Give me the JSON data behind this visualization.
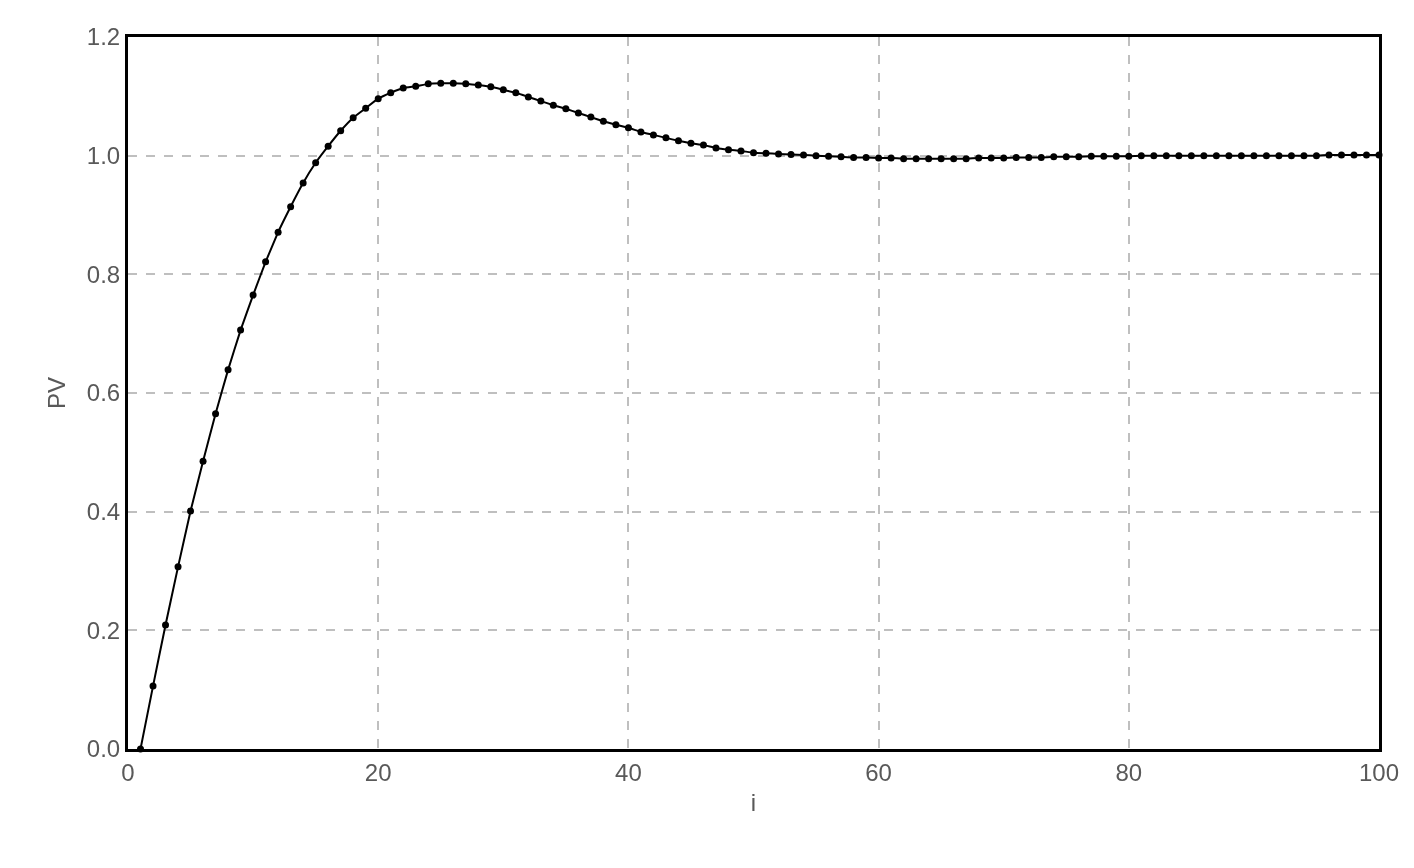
{
  "chart_data": {
    "type": "line",
    "xlabel": "i",
    "ylabel": "PV",
    "x": [
      1,
      2,
      3,
      4,
      5,
      6,
      7,
      8,
      9,
      10,
      11,
      12,
      13,
      14,
      15,
      16,
      17,
      18,
      19,
      20,
      21,
      22,
      23,
      24,
      25,
      26,
      27,
      28,
      29,
      30,
      31,
      32,
      33,
      34,
      35,
      36,
      37,
      38,
      39,
      40,
      41,
      42,
      43,
      44,
      45,
      46,
      47,
      48,
      49,
      50,
      51,
      52,
      53,
      54,
      55,
      56,
      57,
      58,
      59,
      60,
      61,
      62,
      63,
      64,
      65,
      66,
      67,
      68,
      69,
      70,
      71,
      72,
      73,
      74,
      75,
      76,
      77,
      78,
      79,
      80,
      81,
      82,
      83,
      84,
      85,
      86,
      87,
      88,
      89,
      90,
      91,
      92,
      93,
      94,
      95,
      96,
      97,
      98,
      99,
      100
    ],
    "series": [
      {
        "color": "#000000",
        "values": [
          0,
          0.106,
          0.209,
          0.307,
          0.401,
          0.485,
          0.565,
          0.639,
          0.706,
          0.765,
          0.821,
          0.871,
          0.914,
          0.954,
          0.988,
          1.016,
          1.042,
          1.064,
          1.08,
          1.096,
          1.106,
          1.114,
          1.117,
          1.121,
          1.122,
          1.122,
          1.121,
          1.119,
          1.116,
          1.111,
          1.106,
          1.099,
          1.092,
          1.085,
          1.079,
          1.072,
          1.065,
          1.058,
          1.052,
          1.047,
          1.04,
          1.035,
          1.03,
          1.025,
          1.021,
          1.018,
          1.013,
          1.01,
          1.008,
          1.005,
          1.004,
          1.003,
          1.002,
          1.001,
          1.0,
          0.999,
          0.998,
          0.997,
          0.997,
          0.996,
          0.996,
          0.995,
          0.995,
          0.995,
          0.995,
          0.995,
          0.995,
          0.996,
          0.996,
          0.996,
          0.997,
          0.997,
          0.997,
          0.998,
          0.998,
          0.998,
          0.999,
          0.999,
          0.999,
          0.999,
          1.0,
          1.0,
          1.0,
          1.0,
          1.0,
          1.0,
          1.0,
          1.0,
          1.0,
          1.0,
          1.0,
          1.0,
          1.0,
          1.0,
          1.0,
          1.001,
          1.001,
          1.001,
          1.001,
          1.001
        ]
      }
    ],
    "xlim": [
      0,
      100
    ],
    "xticks": [
      0,
      20,
      40,
      60,
      80,
      100
    ],
    "ylim": [
      0,
      1.2
    ],
    "yticks": [
      {
        "value": 0,
        "label": "0.0"
      },
      {
        "value": 0.2,
        "label": "0.2"
      },
      {
        "value": 0.4,
        "label": "0.4"
      },
      {
        "value": 0.6,
        "label": "0.6"
      },
      {
        "value": 0.8,
        "label": "0.8"
      },
      {
        "value": 1.0,
        "label": "1.0"
      },
      {
        "value": 1.2,
        "label": "1.2"
      }
    ],
    "grid": true,
    "legend": false,
    "marker": "circle",
    "line_style": "solid"
  }
}
